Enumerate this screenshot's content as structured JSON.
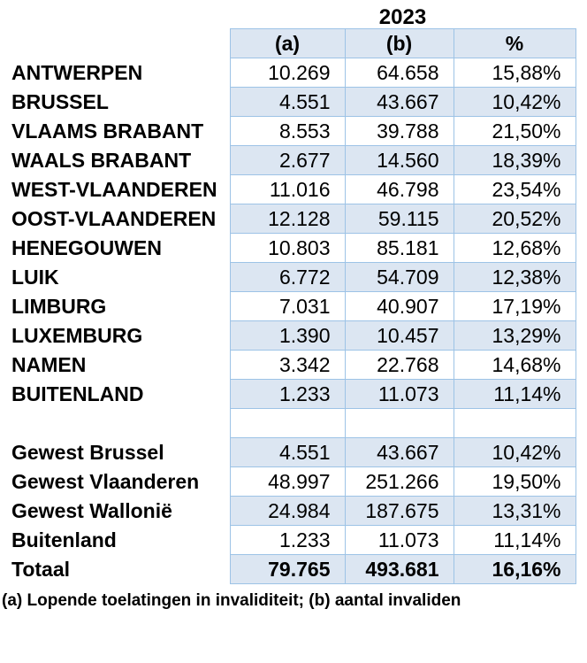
{
  "page": {
    "year_title": "2023",
    "footnote": "(a) Lopende toelatingen in invaliditeit; (b) aantal invaliden"
  },
  "colors": {
    "shaded_row_bg": "#dce6f2",
    "table_border": "#9dc3e6",
    "text": "#000000"
  },
  "table": {
    "column_headers": [
      "(a)",
      "(b)",
      "%"
    ],
    "rows": [
      {
        "label": "ANTWERPEN",
        "a": "10.269",
        "b": "64.658",
        "pct": "15,88%"
      },
      {
        "label": "BRUSSEL",
        "a": "4.551",
        "b": "43.667",
        "pct": "10,42%"
      },
      {
        "label": "VLAAMS BRABANT",
        "a": "8.553",
        "b": "39.788",
        "pct": "21,50%"
      },
      {
        "label": "WAALS BRABANT",
        "a": "2.677",
        "b": "14.560",
        "pct": "18,39%"
      },
      {
        "label": "WEST-VLAANDEREN",
        "a": "11.016",
        "b": "46.798",
        "pct": "23,54%"
      },
      {
        "label": "OOST-VLAANDEREN",
        "a": "12.128",
        "b": "59.115",
        "pct": "20,52%"
      },
      {
        "label": "HENEGOUWEN",
        "a": "10.803",
        "b": "85.181",
        "pct": "12,68%"
      },
      {
        "label": "LUIK",
        "a": "6.772",
        "b": "54.709",
        "pct": "12,38%"
      },
      {
        "label": "LIMBURG",
        "a": "7.031",
        "b": "40.907",
        "pct": "17,19%"
      },
      {
        "label": "LUXEMBURG",
        "a": "1.390",
        "b": "10.457",
        "pct": "13,29%"
      },
      {
        "label": "NAMEN",
        "a": "3.342",
        "b": "22.768",
        "pct": "14,68%"
      },
      {
        "label": "BUITENLAND",
        "a": "1.233",
        "b": "11.073",
        "pct": "11,14%"
      },
      {
        "label": "",
        "a": "",
        "b": "",
        "pct": "",
        "spacer": true
      },
      {
        "label": "Gewest Brussel",
        "a": "4.551",
        "b": "43.667",
        "pct": "10,42%"
      },
      {
        "label": "Gewest Vlaanderen",
        "a": "48.997",
        "b": "251.266",
        "pct": "19,50%"
      },
      {
        "label": "Gewest Wallonië",
        "a": "24.984",
        "b": "187.675",
        "pct": "13,31%"
      },
      {
        "label": "Buitenland",
        "a": "1.233",
        "b": "11.073",
        "pct": "11,14%"
      },
      {
        "label": "Totaal",
        "a": "79.765",
        "b": "493.681",
        "pct": "16,16%",
        "total": true
      }
    ]
  }
}
